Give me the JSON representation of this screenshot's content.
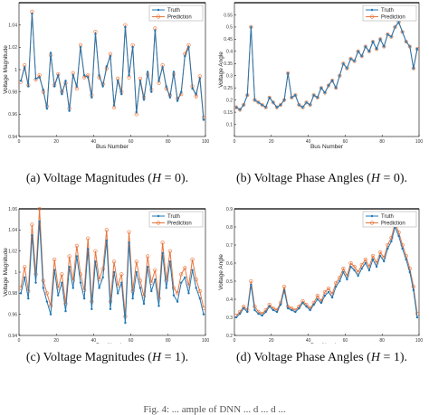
{
  "figure": {
    "captions": [
      {
        "prefix": "(a) Voltage Magnitudes (",
        "var": "H",
        "suffix": " = 0)."
      },
      {
        "prefix": "(b) Voltage Phase Angles (",
        "var": "H",
        "suffix": " = 0)."
      },
      {
        "prefix": "(c) Voltage Magnitudes (",
        "var": "H",
        "suffix": " = 1)."
      },
      {
        "prefix": "(d) Voltage Phase Angles (",
        "var": "H",
        "suffix": " = 1)."
      }
    ],
    "bottom_caption": "Fig. 4: ... ample of DNN ... d ... d ..."
  },
  "colors": {
    "truth": "#1f77b4",
    "prediction": "#e8743b",
    "axis": "#000000"
  },
  "chart_data": [
    {
      "type": "line",
      "xlabel": "Bus Number",
      "ylabel": "Voltage Magnitude",
      "xlim": [
        0,
        100
      ],
      "ylim": [
        0.94,
        1.06
      ],
      "xticks": [
        "0",
        "20",
        "40",
        "60",
        "80",
        "100"
      ],
      "yticks": [
        "0.94",
        "0.96",
        "0.98",
        "1",
        "1.02",
        "1.04"
      ],
      "legend": "top-right",
      "x": [
        1,
        3,
        5,
        7,
        9,
        11,
        13,
        15,
        17,
        19,
        21,
        23,
        25,
        27,
        29,
        31,
        33,
        35,
        37,
        39,
        41,
        43,
        45,
        47,
        49,
        51,
        53,
        55,
        57,
        59,
        61,
        63,
        65,
        67,
        69,
        71,
        73,
        75,
        77,
        79,
        81,
        83,
        85,
        87,
        89,
        91,
        93,
        95,
        97,
        99
      ],
      "series": [
        {
          "name": "Truth",
          "values": [
            0.99,
            1.002,
            0.985,
            1.05,
            0.992,
            0.993,
            0.982,
            0.965,
            1.015,
            0.985,
            0.995,
            0.978,
            0.99,
            0.963,
            0.995,
            0.985,
            1.02,
            0.995,
            0.993,
            0.975,
            1.032,
            0.995,
            0.985,
            1.003,
            1.012,
            0.968,
            0.99,
            0.978,
            1.038,
            0.995,
            1.02,
            0.962,
            0.99,
            0.973,
            0.998,
            0.98,
            1.035,
            0.99,
            1.002,
            0.985,
            0.975,
            0.998,
            0.972,
            0.98,
            1.012,
            1.02,
            0.983,
            0.978,
            0.992,
            0.955
          ]
        },
        {
          "name": "Prediction",
          "values": [
            0.989,
            1.004,
            0.986,
            1.052,
            0.991,
            0.995,
            0.98,
            0.967,
            1.013,
            0.986,
            0.996,
            0.98,
            0.988,
            0.965,
            0.997,
            0.983,
            1.022,
            0.993,
            0.995,
            0.977,
            1.034,
            0.993,
            0.987,
            1.001,
            1.014,
            0.966,
            0.992,
            0.98,
            1.04,
            0.993,
            1.022,
            0.96,
            0.992,
            0.975,
            0.996,
            0.982,
            1.037,
            0.988,
            1.004,
            0.983,
            0.977,
            0.996,
            0.974,
            0.978,
            1.014,
            1.022,
            0.985,
            0.976,
            0.994,
            0.957
          ]
        }
      ]
    },
    {
      "type": "line",
      "xlabel": "Bus Number",
      "ylabel": "Voltage Angle",
      "xlim": [
        0,
        100
      ],
      "ylim": [
        0.05,
        0.6
      ],
      "xticks": [
        "0",
        "20",
        "40",
        "60",
        "80",
        "100"
      ],
      "yticks": [
        "0.1",
        "0.15",
        "0.2",
        "0.25",
        "0.3",
        "0.35",
        "0.4",
        "0.45",
        "0.5",
        "0.55"
      ],
      "legend": "top-right",
      "x": [
        1,
        3,
        5,
        7,
        9,
        11,
        13,
        15,
        17,
        19,
        21,
        23,
        25,
        27,
        29,
        31,
        33,
        35,
        37,
        39,
        41,
        43,
        45,
        47,
        49,
        51,
        53,
        55,
        57,
        59,
        61,
        63,
        65,
        67,
        69,
        71,
        73,
        75,
        77,
        79,
        81,
        83,
        85,
        87,
        89,
        91,
        93,
        95,
        97,
        99
      ],
      "series": [
        {
          "name": "Truth",
          "values": [
            0.17,
            0.16,
            0.18,
            0.22,
            0.5,
            0.2,
            0.19,
            0.18,
            0.17,
            0.21,
            0.19,
            0.17,
            0.18,
            0.2,
            0.31,
            0.21,
            0.22,
            0.18,
            0.17,
            0.19,
            0.18,
            0.22,
            0.21,
            0.25,
            0.23,
            0.26,
            0.28,
            0.25,
            0.3,
            0.35,
            0.33,
            0.37,
            0.36,
            0.4,
            0.38,
            0.42,
            0.4,
            0.44,
            0.41,
            0.45,
            0.42,
            0.47,
            0.46,
            0.5,
            0.52,
            0.48,
            0.44,
            0.42,
            0.33,
            0.41
          ]
        },
        {
          "name": "Prediction",
          "values": [
            0.17,
            0.16,
            0.18,
            0.22,
            0.5,
            0.2,
            0.19,
            0.18,
            0.17,
            0.21,
            0.19,
            0.17,
            0.18,
            0.2,
            0.31,
            0.21,
            0.22,
            0.18,
            0.17,
            0.19,
            0.18,
            0.22,
            0.21,
            0.25,
            0.23,
            0.26,
            0.28,
            0.25,
            0.3,
            0.35,
            0.33,
            0.37,
            0.36,
            0.4,
            0.38,
            0.42,
            0.4,
            0.44,
            0.41,
            0.45,
            0.42,
            0.47,
            0.46,
            0.5,
            0.52,
            0.48,
            0.44,
            0.42,
            0.33,
            0.41
          ]
        }
      ]
    },
    {
      "type": "line",
      "xlabel": "Bus Number",
      "ylabel": "Voltage Magnitude",
      "xlim": [
        0,
        100
      ],
      "ylim": [
        0.94,
        1.06
      ],
      "xticks": [
        "0",
        "20",
        "40",
        "60",
        "80",
        "100"
      ],
      "yticks": [
        "0.94",
        "0.96",
        "0.98",
        "1",
        "1.02",
        "1.04",
        "1.06"
      ],
      "legend": "top-right",
      "x": [
        1,
        3,
        5,
        7,
        9,
        11,
        13,
        15,
        17,
        19,
        21,
        23,
        25,
        27,
        29,
        31,
        33,
        35,
        37,
        39,
        41,
        43,
        45,
        47,
        49,
        51,
        53,
        55,
        57,
        59,
        61,
        63,
        65,
        67,
        69,
        71,
        73,
        75,
        77,
        79,
        81,
        83,
        85,
        87,
        89,
        91,
        93,
        95,
        97,
        99
      ],
      "series": [
        {
          "name": "Truth",
          "values": [
            0.98,
            0.995,
            0.975,
            1.035,
            0.99,
            1.048,
            0.985,
            0.972,
            0.96,
            1.002,
            0.978,
            0.99,
            0.963,
            1.005,
            0.985,
            1.015,
            0.99,
            0.975,
            1.022,
            0.965,
            1.01,
            0.985,
            0.995,
            1.03,
            0.965,
            1.0,
            0.98,
            0.99,
            0.952,
            1.028,
            0.975,
            1.0,
            0.985,
            0.97,
            1.005,
            0.982,
            0.993,
            0.968,
            1.018,
            0.985,
            1.01,
            0.978,
            0.972,
            0.99,
            0.995,
            0.98,
            1.002,
            0.985,
            0.975,
            0.96
          ]
        },
        {
          "name": "Prediction",
          "values": [
            0.985,
            1.005,
            0.982,
            1.045,
            0.998,
            1.06,
            0.992,
            0.98,
            0.968,
            1.012,
            0.985,
            0.998,
            0.97,
            1.015,
            0.992,
            1.025,
            0.998,
            0.983,
            1.032,
            0.972,
            1.02,
            0.993,
            1.003,
            1.04,
            0.972,
            1.01,
            0.987,
            0.998,
            0.958,
            1.038,
            0.982,
            1.01,
            0.992,
            0.977,
            1.015,
            0.99,
            1.002,
            0.975,
            1.028,
            0.992,
            1.02,
            0.985,
            0.98,
            0.998,
            1.004,
            0.987,
            1.012,
            0.993,
            0.982,
            0.966
          ]
        }
      ]
    },
    {
      "type": "line",
      "xlabel": "Bus Number",
      "ylabel": "Voltage Angle",
      "xlim": [
        0,
        100
      ],
      "ylim": [
        0.2,
        0.9
      ],
      "xticks": [
        "0",
        "20",
        "40",
        "60",
        "80",
        "100"
      ],
      "yticks": [
        "0.2",
        "0.3",
        "0.4",
        "0.5",
        "0.6",
        "0.7",
        "0.8",
        "0.9"
      ],
      "legend": "top-right",
      "x": [
        1,
        3,
        5,
        7,
        9,
        11,
        13,
        15,
        17,
        19,
        21,
        23,
        25,
        27,
        29,
        31,
        33,
        35,
        37,
        39,
        41,
        43,
        45,
        47,
        49,
        51,
        53,
        55,
        57,
        59,
        61,
        63,
        65,
        67,
        69,
        71,
        73,
        75,
        77,
        79,
        81,
        83,
        85,
        87,
        89,
        91,
        93,
        95,
        97,
        99
      ],
      "series": [
        {
          "name": "Truth",
          "values": [
            0.3,
            0.32,
            0.35,
            0.33,
            0.48,
            0.34,
            0.32,
            0.31,
            0.33,
            0.36,
            0.34,
            0.33,
            0.37,
            0.45,
            0.35,
            0.34,
            0.33,
            0.35,
            0.38,
            0.36,
            0.34,
            0.37,
            0.4,
            0.38,
            0.42,
            0.44,
            0.41,
            0.47,
            0.5,
            0.55,
            0.51,
            0.58,
            0.56,
            0.53,
            0.57,
            0.6,
            0.56,
            0.62,
            0.58,
            0.64,
            0.61,
            0.68,
            0.72,
            0.8,
            0.75,
            0.68,
            0.62,
            0.55,
            0.45,
            0.3
          ]
        },
        {
          "name": "Prediction",
          "values": [
            0.31,
            0.33,
            0.36,
            0.34,
            0.5,
            0.36,
            0.33,
            0.32,
            0.34,
            0.37,
            0.35,
            0.34,
            0.38,
            0.47,
            0.36,
            0.35,
            0.34,
            0.36,
            0.39,
            0.37,
            0.35,
            0.38,
            0.42,
            0.39,
            0.44,
            0.46,
            0.43,
            0.49,
            0.52,
            0.57,
            0.53,
            0.6,
            0.58,
            0.55,
            0.59,
            0.62,
            0.58,
            0.64,
            0.6,
            0.66,
            0.63,
            0.7,
            0.74,
            0.82,
            0.77,
            0.7,
            0.64,
            0.57,
            0.47,
            0.32
          ]
        }
      ]
    }
  ]
}
